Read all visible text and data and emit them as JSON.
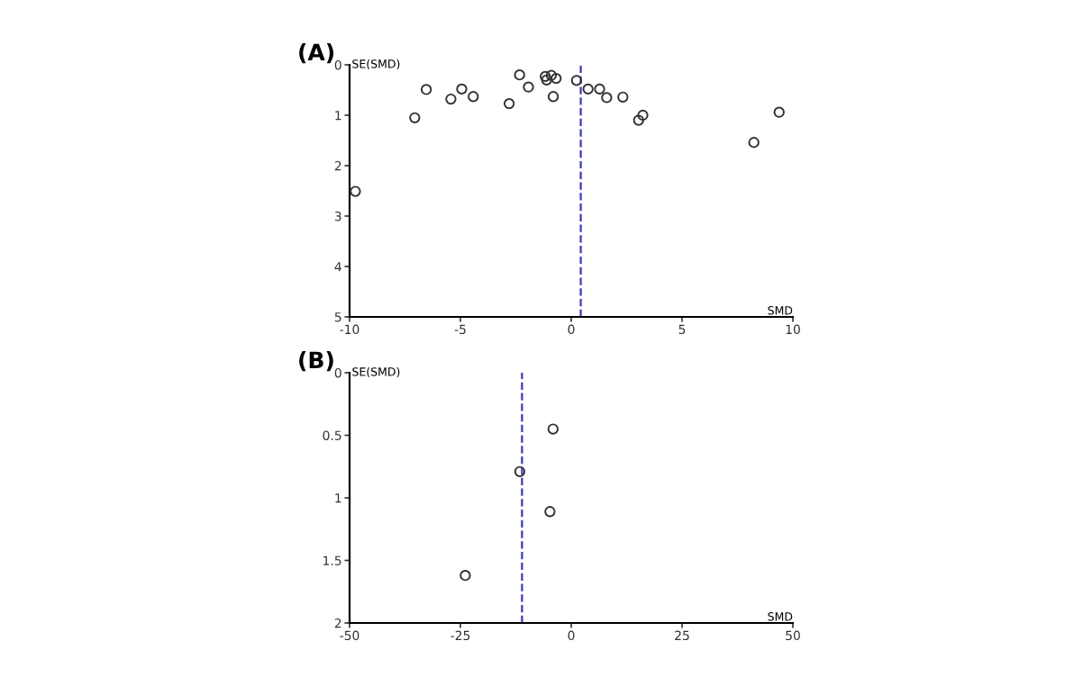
{
  "chart_data": [
    {
      "type": "scatter",
      "title": "(A)",
      "xlabel": "SMD",
      "ylabel": "SE(SMD)",
      "marker": "circle",
      "grid": false,
      "legend": false,
      "series": [
        {
          "color": "#333333",
          "x": [
            -9.74,
            -7.06,
            -6.54,
            -5.43,
            -4.94,
            -4.42,
            -2.8,
            -2.33,
            -1.93,
            -1.17,
            -1.11,
            -0.9,
            -0.68,
            -0.81,
            0.24,
            0.76,
            1.28,
            1.6,
            2.33,
            3.04,
            3.23,
            8.24,
            9.38
          ],
          "values": [
            2.51,
            1.05,
            0.49,
            0.68,
            0.48,
            0.63,
            0.77,
            0.2,
            0.44,
            0.23,
            0.3,
            0.21,
            0.27,
            0.63,
            0.31,
            0.48,
            0.48,
            0.65,
            0.64,
            1.1,
            1.0,
            1.54,
            0.94
          ]
        }
      ],
      "xlim": [
        -10,
        10
      ],
      "xticks": [
        -10,
        -5,
        0,
        5,
        10
      ],
      "ylim": [
        5,
        0
      ],
      "yticks": [
        0,
        1,
        2,
        3,
        4,
        5
      ],
      "ref_lines": [
        {
          "axis": "x",
          "value": 0.43,
          "color": "#3a3ab8",
          "line_style": "dashed"
        }
      ]
    },
    {
      "type": "scatter",
      "title": "(B)",
      "xlabel": "SMD",
      "ylabel": "SE(SMD)",
      "marker": "circle",
      "grid": false,
      "legend": false,
      "series": [
        {
          "color": "#333333",
          "x": [
            -4.1,
            -11.6,
            -4.8,
            -23.9
          ],
          "values": [
            0.45,
            0.79,
            1.11,
            1.62
          ]
        }
      ],
      "xlim": [
        -50,
        50
      ],
      "xticks": [
        -50,
        -25,
        0,
        25,
        50
      ],
      "ylim": [
        2,
        0
      ],
      "yticks": [
        0,
        0.5,
        1,
        1.5,
        2
      ],
      "ref_lines": [
        {
          "axis": "x",
          "value": -11.1,
          "color": "#3a3ab8",
          "line_style": "dashed"
        }
      ]
    }
  ]
}
